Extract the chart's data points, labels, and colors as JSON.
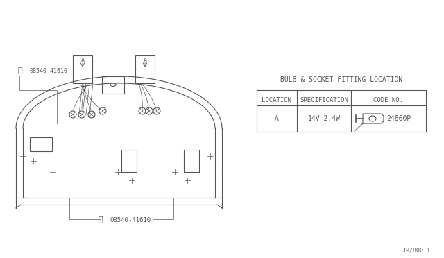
{
  "bg_color": "#f0f0f0",
  "line_color": "#555555",
  "title_table": "BULB & SOCKET FITTING LOCATION",
  "col_headers": [
    "LOCATION",
    "SPECIFICATION",
    "CODE NO."
  ],
  "row_data": [
    [
      "A",
      "14V-2.4W",
      "24860P"
    ]
  ],
  "part_label_top": "08540-41610",
  "part_label_bottom": "08540-41610",
  "page_ref": "JP/800 1",
  "label_A": "A",
  "font_size_table": 7,
  "font_size_label": 6.5,
  "font_size_ref": 6
}
